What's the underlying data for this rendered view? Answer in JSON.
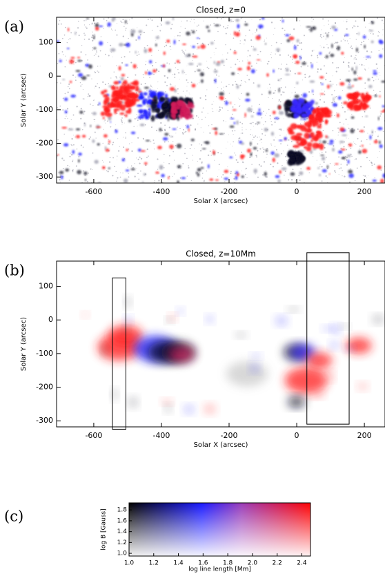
{
  "panels": [
    {
      "label": "(a)",
      "title": "Closed, z=0",
      "xlabel": "Solar X (arcsec)",
      "ylabel": "Solar Y (arcsec)",
      "xlim": [
        -710,
        261
      ],
      "ylim": [
        -318,
        175
      ],
      "xticks": [
        -600,
        -400,
        -200,
        0,
        200
      ],
      "yticks": [
        -300,
        -200,
        -100,
        0,
        100
      ]
    },
    {
      "label": "(b)",
      "title": "Closed, z=10Mm",
      "xlabel": "Solar X (arcsec)",
      "ylabel": "Solar Y (arcsec)",
      "xlim": [
        -710,
        261
      ],
      "ylim": [
        -318,
        175
      ],
      "xticks": [
        -600,
        -400,
        -200,
        0,
        200
      ],
      "yticks": [
        -300,
        -200,
        -100,
        0,
        100
      ],
      "boxes": [
        {
          "x": [
            -545,
            -505
          ],
          "y": [
            -325,
            125
          ]
        },
        {
          "x": [
            30,
            155
          ],
          "y": [
            -310,
            200
          ]
        }
      ]
    }
  ],
  "colorbar": {
    "label": "(c)",
    "xlabel": "log line length [Mm]",
    "ylabel": "log B [Gauss]",
    "xlim": [
      1.0,
      2.47
    ],
    "ylim": [
      0.95,
      1.93
    ],
    "xticks": [
      {
        "value": 1,
        "label": "1.0"
      },
      1.2,
      1.4,
      1.6,
      1.8,
      {
        "value": 2,
        "label": "2.0"
      },
      2.2,
      2.4
    ],
    "yticks": [
      {
        "value": 1,
        "label": "1.0"
      },
      1.2,
      1.4,
      1.6,
      1.8
    ]
  }
}
